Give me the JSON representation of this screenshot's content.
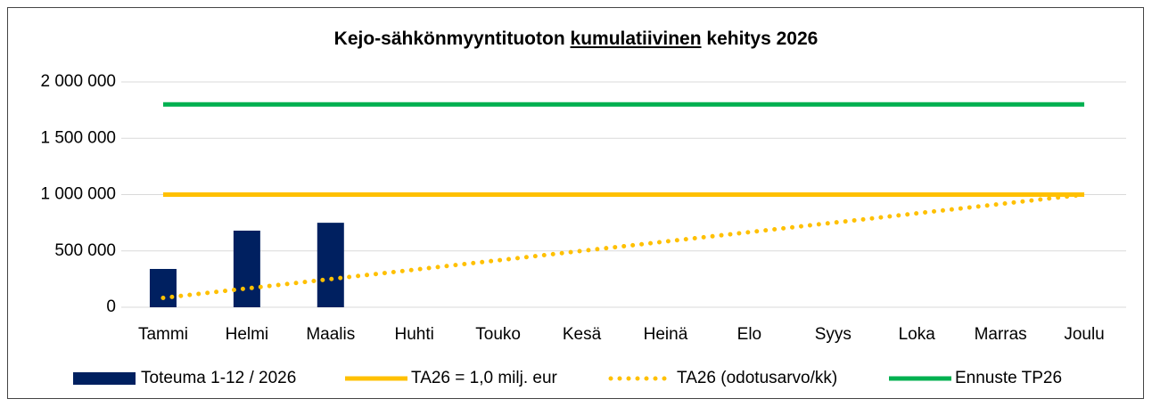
{
  "chart_data": {
    "type": "bar",
    "title": [
      "Kejo-sähkönmyyntituoton",
      "kumulatiivinen",
      "kehitys 2026"
    ],
    "categories": [
      "Tammi",
      "Helmi",
      "Maalis",
      "Huhti",
      "Touko",
      "Kesä",
      "Heinä",
      "Elo",
      "Syys",
      "Loka",
      "Marras",
      "Joulu"
    ],
    "ylim": [
      0,
      2000000
    ],
    "yticks": [
      0,
      {
        "value": 500000,
        "label": "500 000"
      },
      {
        "value": 1000000,
        "label": "1 000 000"
      },
      {
        "value": 1500000,
        "label": "1 500 000"
      },
      {
        "value": 2000000,
        "label": "2 000 000"
      }
    ],
    "grid": true,
    "legend": "bottom",
    "series": [
      {
        "name": "Toteuma 1-12 / 2026",
        "type": "bar",
        "color": "#002060",
        "values": [
          340000,
          680000,
          750000,
          null,
          null,
          null,
          null,
          null,
          null,
          null,
          null,
          null
        ]
      },
      {
        "name": "TA26 = 1,0 milj. eur",
        "type": "line",
        "color": "#ffc000",
        "values": [
          1000000,
          1000000,
          1000000,
          1000000,
          1000000,
          1000000,
          1000000,
          1000000,
          1000000,
          1000000,
          1000000,
          1000000
        ]
      },
      {
        "name": "TA26 (odotusarvo/kk)",
        "type": "line",
        "dash": "dotted",
        "color": "#ffc000",
        "values": [
          83333,
          166667,
          250000,
          333333,
          416667,
          500000,
          583333,
          666667,
          750000,
          833333,
          916667,
          1000000
        ]
      },
      {
        "name": "Ennuste TP26",
        "type": "line",
        "color": "#00b050",
        "values": [
          1800000,
          1800000,
          1800000,
          1800000,
          1800000,
          1800000,
          1800000,
          1800000,
          1800000,
          1800000,
          1800000,
          1800000
        ]
      }
    ]
  }
}
